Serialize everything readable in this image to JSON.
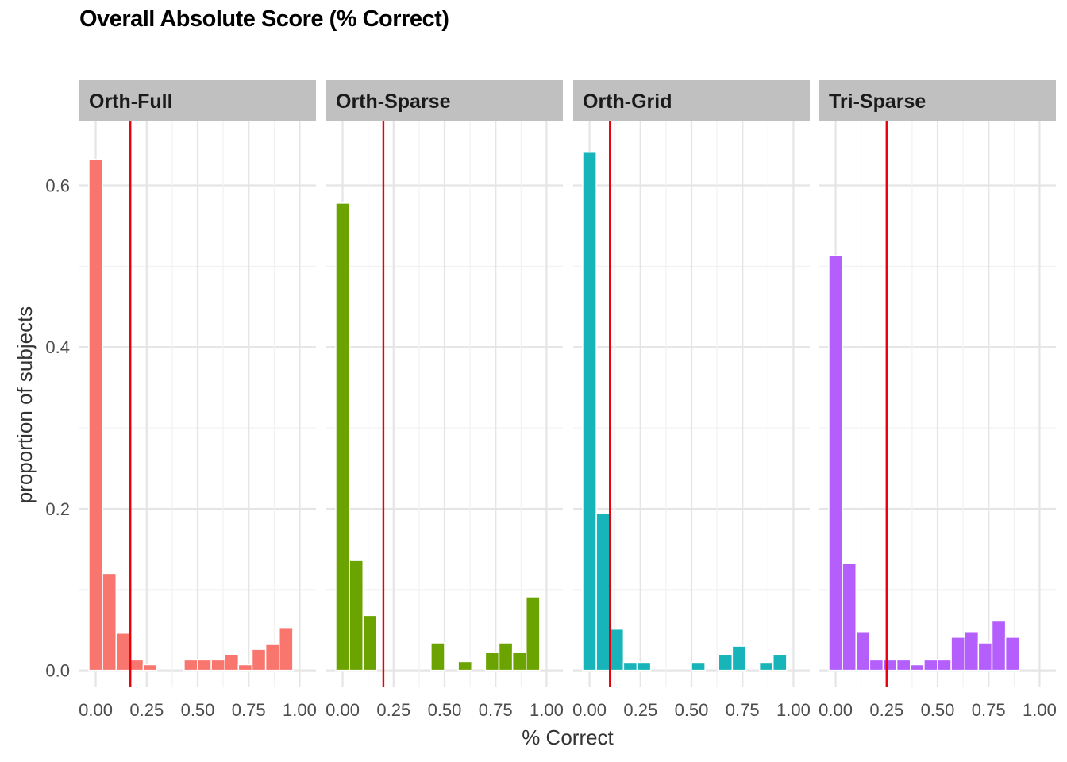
{
  "title": "Overall Absolute Score (% Correct)",
  "chart_data": {
    "type": "bar",
    "title": "Overall Absolute Score (% Correct)",
    "xlabel": "% Correct",
    "ylabel": "proportion of subjects",
    "xlim": [
      -0.08,
      1.08
    ],
    "ylim": [
      -0.02,
      0.68
    ],
    "x_ticks": [
      "0.00",
      "0.25",
      "0.50",
      "0.75",
      "1.00"
    ],
    "y_ticks": [
      "0.0",
      "0.2",
      "0.4",
      "0.6"
    ],
    "bin_width": 0.0667,
    "grid": true,
    "legend": "none",
    "facets": [
      {
        "label": "Orth-Full",
        "color": "#F8766D",
        "vline": 0.17,
        "bins": [
          {
            "x": 0.0,
            "y": 0.632
          },
          {
            "x": 0.0667,
            "y": 0.12
          },
          {
            "x": 0.1333,
            "y": 0.046
          },
          {
            "x": 0.2,
            "y": 0.013
          },
          {
            "x": 0.2667,
            "y": 0.007
          },
          {
            "x": 0.3333,
            "y": 0.0
          },
          {
            "x": 0.4,
            "y": 0.0
          },
          {
            "x": 0.4667,
            "y": 0.013
          },
          {
            "x": 0.5333,
            "y": 0.013
          },
          {
            "x": 0.6,
            "y": 0.013
          },
          {
            "x": 0.6667,
            "y": 0.02
          },
          {
            "x": 0.7333,
            "y": 0.007
          },
          {
            "x": 0.8,
            "y": 0.026
          },
          {
            "x": 0.8667,
            "y": 0.033
          },
          {
            "x": 0.9333,
            "y": 0.053
          }
        ]
      },
      {
        "label": "Orth-Sparse",
        "color": "#6BA300",
        "vline": 0.2,
        "bins": [
          {
            "x": 0.0,
            "y": 0.578
          },
          {
            "x": 0.0667,
            "y": 0.136
          },
          {
            "x": 0.1333,
            "y": 0.068
          },
          {
            "x": 0.2,
            "y": 0.0
          },
          {
            "x": 0.2667,
            "y": 0.0
          },
          {
            "x": 0.3333,
            "y": 0.0
          },
          {
            "x": 0.4,
            "y": 0.0
          },
          {
            "x": 0.4667,
            "y": 0.034
          },
          {
            "x": 0.5333,
            "y": 0.0
          },
          {
            "x": 0.6,
            "y": 0.011
          },
          {
            "x": 0.6667,
            "y": 0.0
          },
          {
            "x": 0.7333,
            "y": 0.022
          },
          {
            "x": 0.8,
            "y": 0.034
          },
          {
            "x": 0.8667,
            "y": 0.022
          },
          {
            "x": 0.9333,
            "y": 0.091
          }
        ]
      },
      {
        "label": "Orth-Grid",
        "color": "#17B5B9",
        "vline": 0.1,
        "bins": [
          {
            "x": 0.0,
            "y": 0.641
          },
          {
            "x": 0.0667,
            "y": 0.194
          },
          {
            "x": 0.1333,
            "y": 0.051
          },
          {
            "x": 0.2,
            "y": 0.01
          },
          {
            "x": 0.2667,
            "y": 0.01
          },
          {
            "x": 0.3333,
            "y": 0.0
          },
          {
            "x": 0.4,
            "y": 0.0
          },
          {
            "x": 0.4667,
            "y": 0.0
          },
          {
            "x": 0.5333,
            "y": 0.01
          },
          {
            "x": 0.6,
            "y": 0.0
          },
          {
            "x": 0.6667,
            "y": 0.02
          },
          {
            "x": 0.7333,
            "y": 0.03
          },
          {
            "x": 0.8,
            "y": 0.0
          },
          {
            "x": 0.8667,
            "y": 0.01
          },
          {
            "x": 0.9333,
            "y": 0.02
          }
        ]
      },
      {
        "label": "Tri-Sparse",
        "color": "#B45EFC",
        "vline": 0.25,
        "bins": [
          {
            "x": 0.0,
            "y": 0.513
          },
          {
            "x": 0.0667,
            "y": 0.132
          },
          {
            "x": 0.1333,
            "y": 0.048
          },
          {
            "x": 0.2,
            "y": 0.013
          },
          {
            "x": 0.2667,
            "y": 0.013
          },
          {
            "x": 0.3333,
            "y": 0.013
          },
          {
            "x": 0.4,
            "y": 0.007
          },
          {
            "x": 0.4667,
            "y": 0.013
          },
          {
            "x": 0.5333,
            "y": 0.013
          },
          {
            "x": 0.6,
            "y": 0.041
          },
          {
            "x": 0.6667,
            "y": 0.048
          },
          {
            "x": 0.7333,
            "y": 0.034
          },
          {
            "x": 0.8,
            "y": 0.062
          },
          {
            "x": 0.8667,
            "y": 0.041
          }
        ]
      }
    ],
    "vline_color": "#E8000B"
  }
}
